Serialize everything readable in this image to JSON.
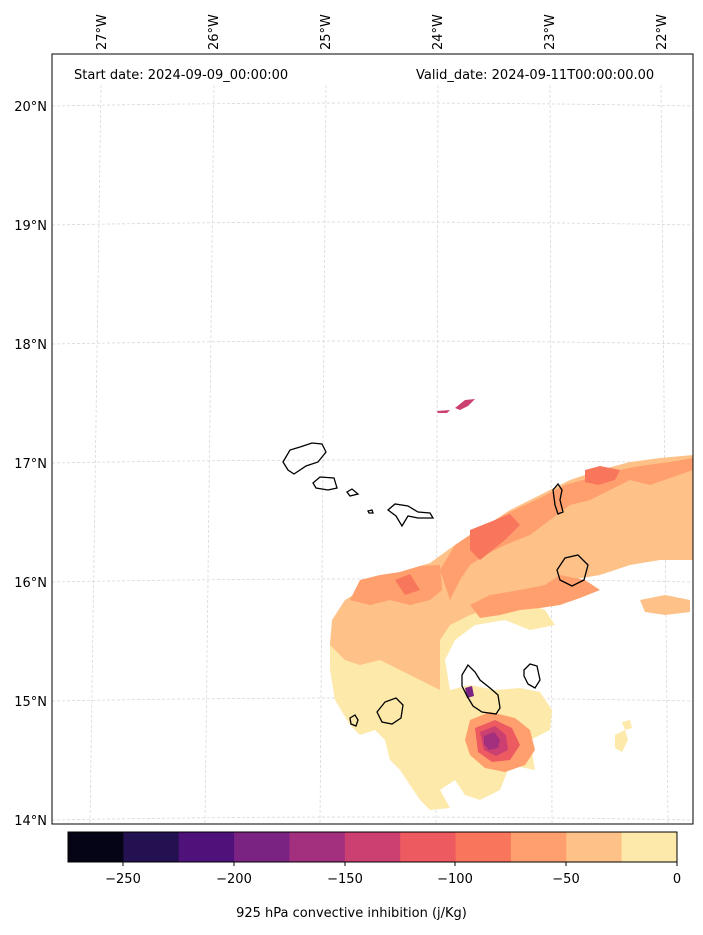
{
  "header": {
    "start_date": "Start date: 2024-09-09_00:00:00",
    "valid_date": "Valid_date: 2024-09-11T00:00:00.00"
  },
  "lon_labels": [
    "27°W",
    "26°W",
    "25°W",
    "24°W",
    "23°W",
    "22°W"
  ],
  "lat_labels": [
    "20°N",
    "19°N",
    "18°N",
    "17°N",
    "16°N",
    "15°N",
    "14°N"
  ],
  "colorbar": {
    "title": "925 hPa convective inhibition (j/Kg)",
    "tick_labels": [
      "−250",
      "−200",
      "−150",
      "−100",
      "−50",
      "0"
    ],
    "colors": [
      "#050416",
      "#231151",
      "#4f127b",
      "#7b2382",
      "#a3307e",
      "#cc3f71",
      "#ed5a5f",
      "#f8765c",
      "#fe9f6d",
      "#fec187",
      "#fde9a9"
    ]
  },
  "map": {
    "region": "Cape Verde Islands",
    "field": "925 hPa convective inhibition"
  }
}
